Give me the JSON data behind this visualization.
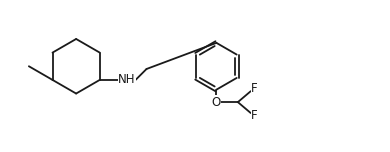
{
  "bg_color": "#ffffff",
  "bond_color": "#1a1a1a",
  "N_color": "#1a1a1a",
  "O_color": "#1a1a1a",
  "F_color": "#1a1a1a",
  "line_width": 1.3,
  "font_size_atom": 8.5,
  "figsize": [
    3.9,
    1.52
  ],
  "dpi": 100,
  "xlim": [
    0,
    10
  ],
  "ylim": [
    0,
    3.9
  ],
  "hex_r": 0.7,
  "benz_r": 0.6
}
